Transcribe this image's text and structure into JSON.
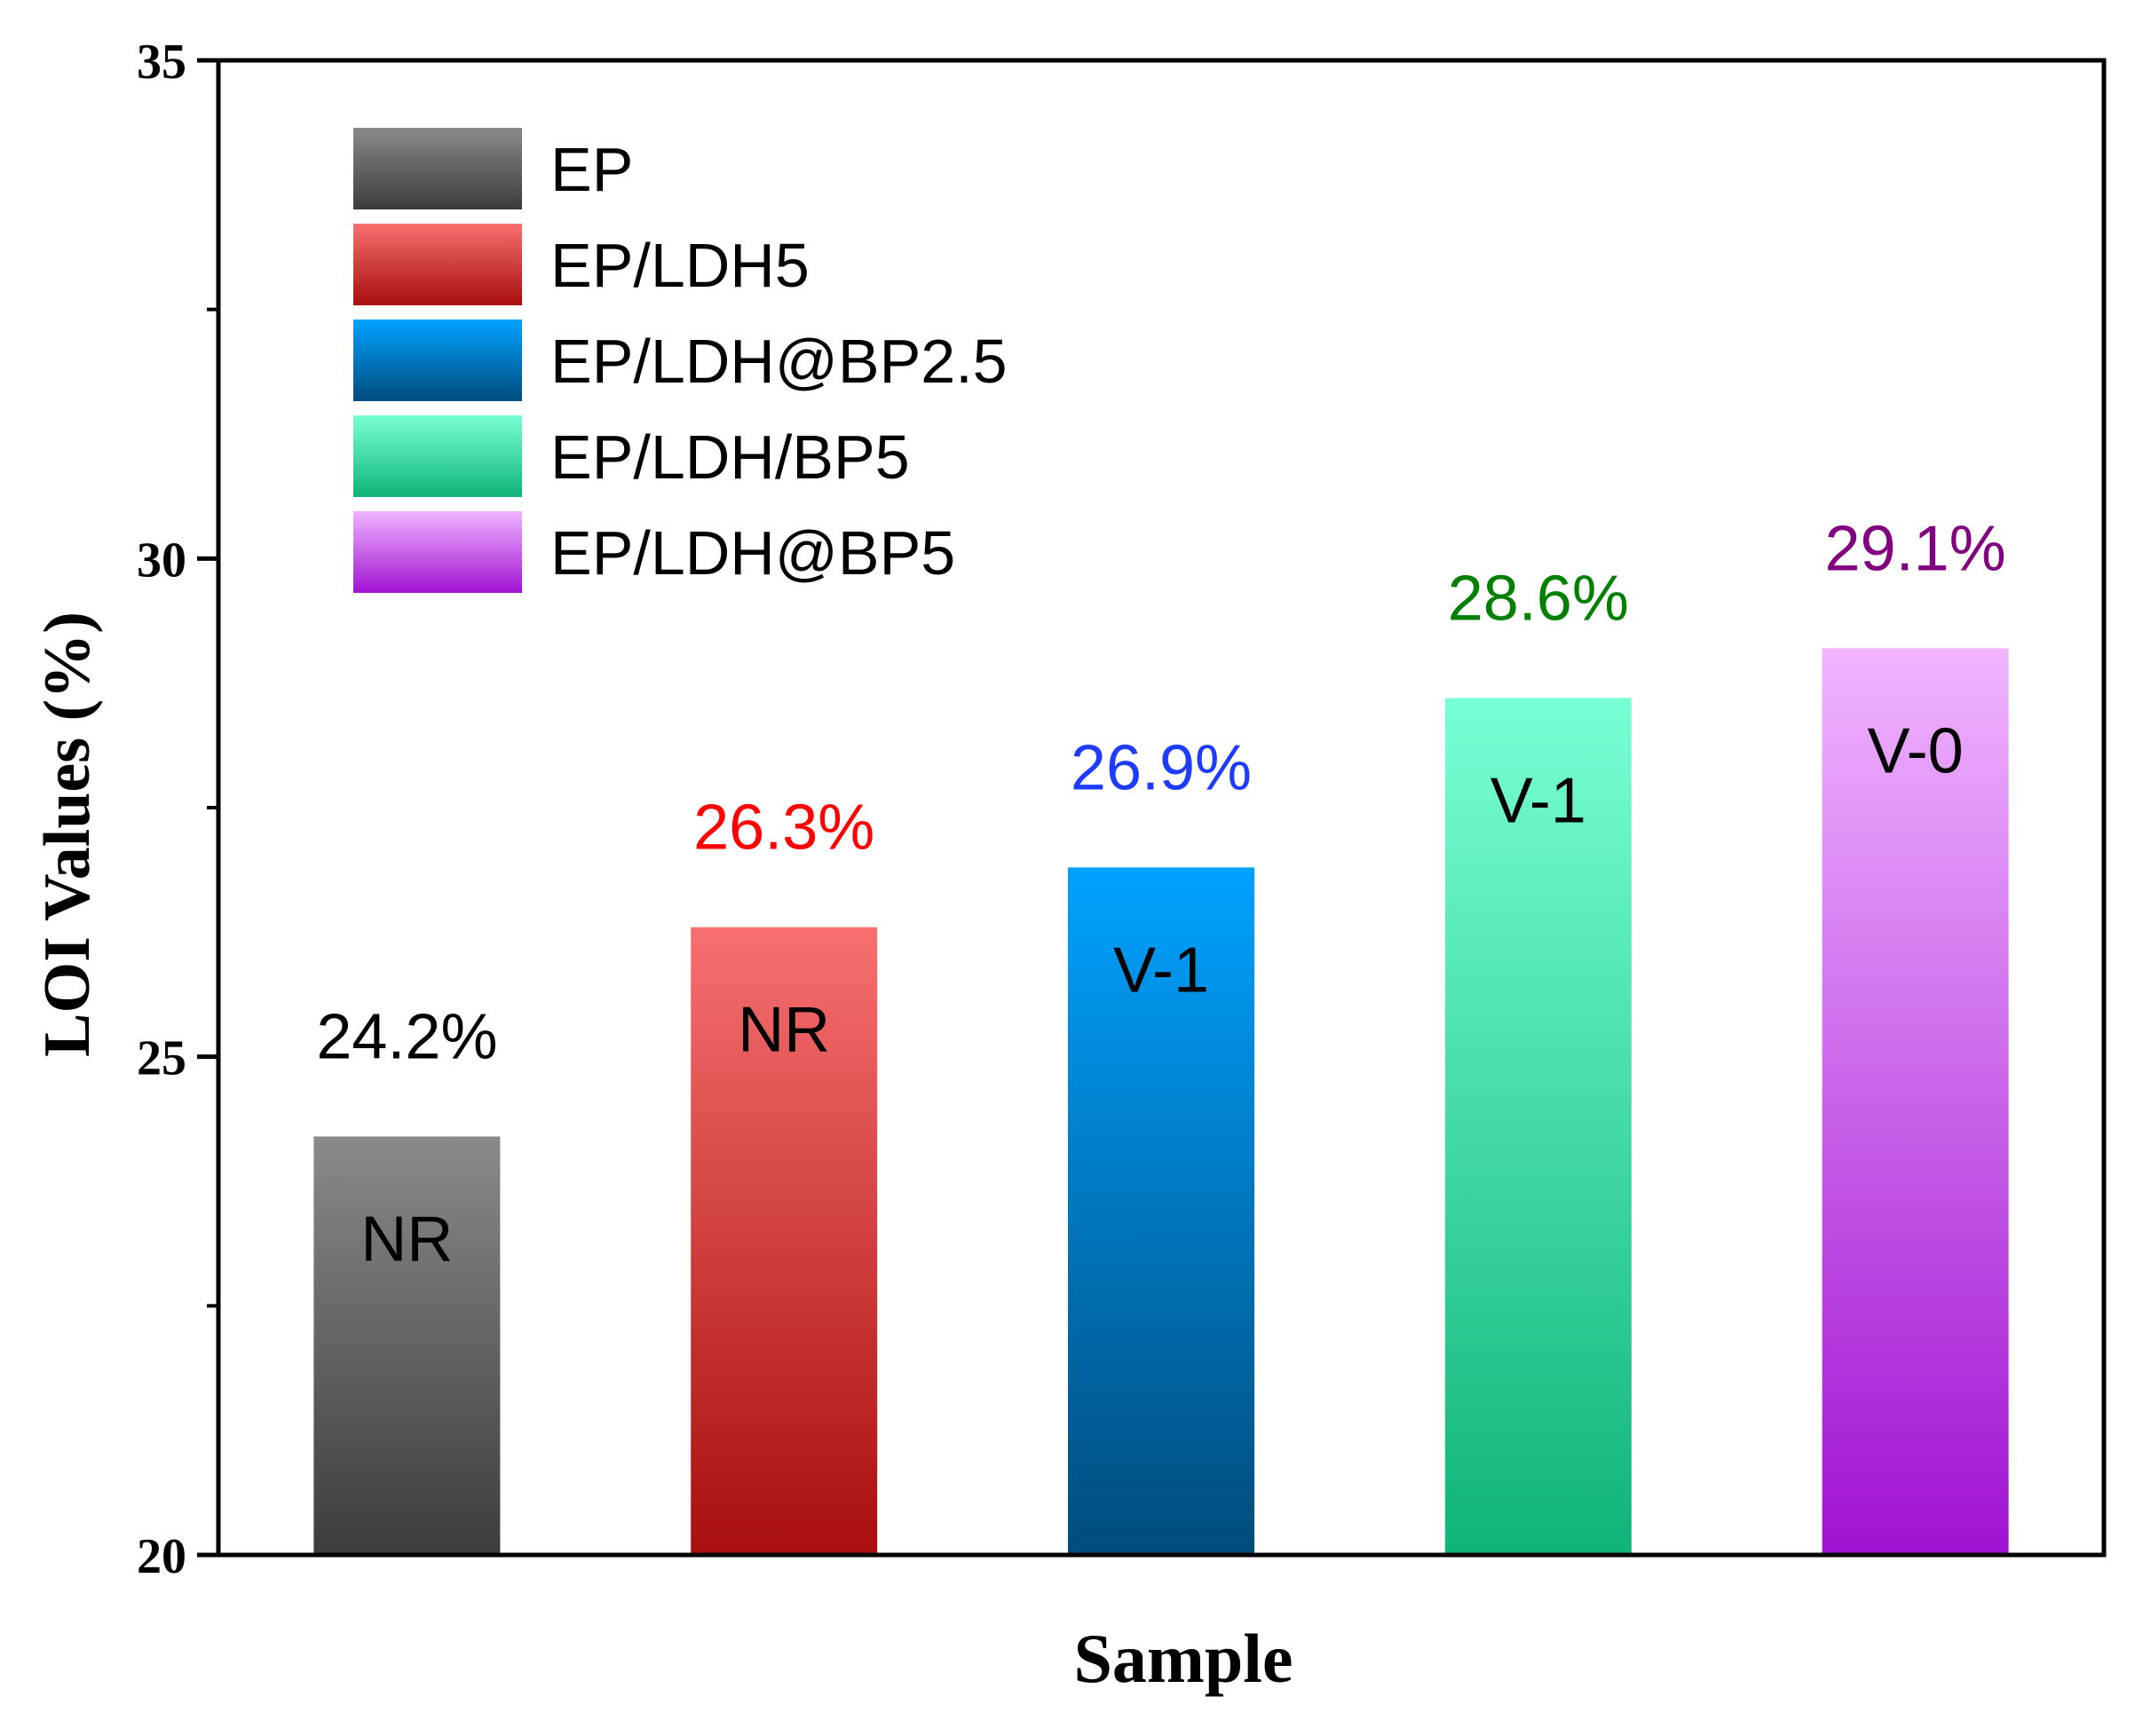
{
  "chart_data": {
    "type": "bar",
    "title": "",
    "xlabel": "Sample",
    "ylabel": "LOI Values (%)",
    "ylim": [
      20,
      35
    ],
    "yticks": [
      20,
      25,
      30,
      35
    ],
    "ytick_labels": [
      "20",
      "25",
      "30",
      "35"
    ],
    "minor_yticks": [
      22.5,
      27.5,
      32.5
    ],
    "grid": false,
    "legend_position": "top-left",
    "series": [
      {
        "name": "EP",
        "value": 24.2,
        "value_label": "24.2%",
        "rating": "NR",
        "top_color": "#8a8a8a",
        "bottom_color": "#3c3c3c",
        "label_color": "#000000"
      },
      {
        "name": "EP/LDH5",
        "value": 26.3,
        "value_label": "26.3%",
        "rating": "NR",
        "top_color": "#f77070",
        "bottom_color": "#a80e0e",
        "label_color": "#ff0000"
      },
      {
        "name": "EP/LDH@BP2.5",
        "value": 26.9,
        "value_label": "26.9%",
        "rating": "V-1",
        "top_color": "#00a2ff",
        "bottom_color": "#004c7c",
        "label_color": "#1e3cff"
      },
      {
        "name": "EP/LDH/BP5",
        "value": 28.6,
        "value_label": "28.6%",
        "rating": "V-1",
        "top_color": "#78ffd5",
        "bottom_color": "#0fb477",
        "label_color": "#008000"
      },
      {
        "name": "EP/LDH@BP5",
        "value": 29.1,
        "value_label": "29.1%",
        "rating": "V-0",
        "top_color": "#f0b4ff",
        "bottom_color": "#a012d2",
        "label_color": "#800080"
      }
    ]
  },
  "colors": {
    "axis": "#000000",
    "rating_text": "#000000"
  }
}
